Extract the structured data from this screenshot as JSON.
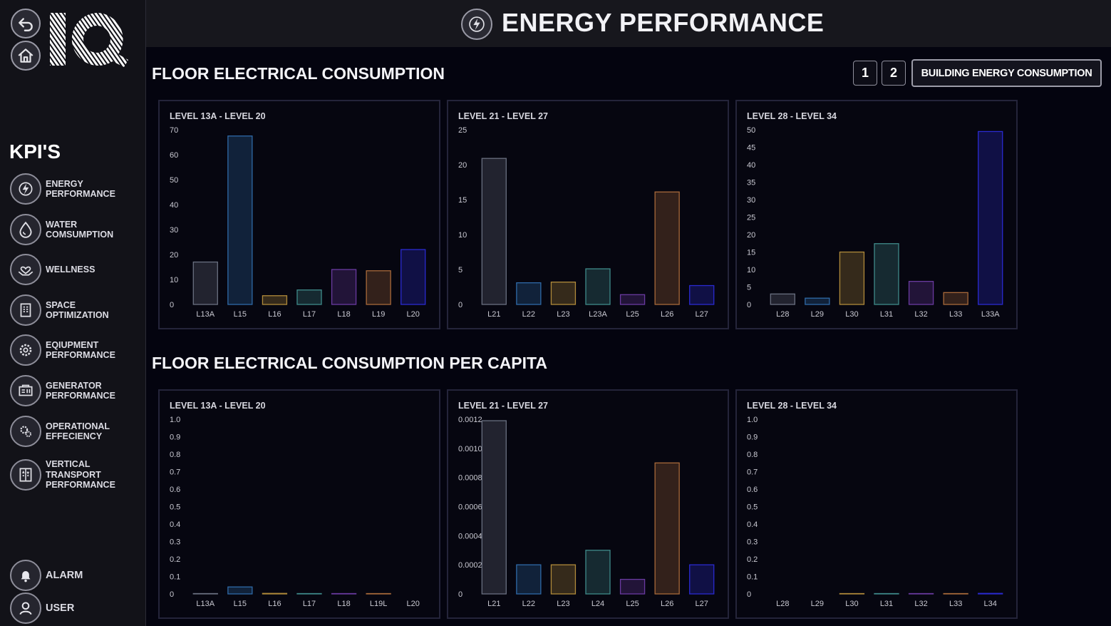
{
  "header": {
    "title": "ENERGY PERFORMANCE",
    "icon": "energy-bolt-icon"
  },
  "sidebar": {
    "kpi_title": "KPI'S",
    "items": [
      {
        "label": "ENERGY\nPERFORMANCE",
        "icon": "energy-icon"
      },
      {
        "label": "WATER\nCOMSUMPTION",
        "icon": "water-drop-icon"
      },
      {
        "label": "WELLNESS",
        "icon": "wellness-heart-icon"
      },
      {
        "label": "SPACE\nOPTIMIZATION",
        "icon": "building-icon"
      },
      {
        "label": "EQIUPMENT\nPERFORMANCE",
        "icon": "gear-icon"
      },
      {
        "label": "GENERATOR\nPERFORMANCE",
        "icon": "generator-icon"
      },
      {
        "label": "OPERATIONAL\nEFFECIENCY",
        "icon": "operations-icon"
      },
      {
        "label": "VERTICAL\nTRANSPORT\nPERFORMANCE",
        "icon": "elevator-icon"
      }
    ],
    "bottom": [
      {
        "label": "ALARM",
        "icon": "bell-icon"
      },
      {
        "label": "USER",
        "icon": "user-icon"
      }
    ]
  },
  "sections": {
    "consumption_title": "FLOOR ELECTRICAL CONSUMPTION",
    "per_capita_title": "FLOOR ELECTRICAL CONSUMPTION PER CAPITA"
  },
  "pagination": {
    "page1": "1",
    "page2": "2"
  },
  "building_button": "BUILDING ENERGY CONSUMPTION",
  "chart_data": [
    {
      "type": "bar",
      "title": "LEVEL 13A - LEVEL 20",
      "categories": [
        "L13A",
        "L15",
        "L16",
        "L17",
        "L18",
        "L19",
        "L20"
      ],
      "values": [
        17,
        67.5,
        3.5,
        5.8,
        14,
        13.5,
        22
      ],
      "ylim": [
        0,
        70
      ],
      "yticks": [
        "0",
        "10",
        "20",
        "30",
        "40",
        "50",
        "60",
        "70"
      ],
      "colors": [
        "#6a7080",
        "#2f6aa8",
        "#b08a3a",
        "#3f8a8a",
        "#6a3aa0",
        "#a8693a",
        "#2a2ad0"
      ]
    },
    {
      "type": "bar",
      "title": "LEVEL 21 - LEVEL 27",
      "categories": [
        "L21",
        "L22",
        "L23",
        "L23A",
        "L25",
        "L26",
        "L27"
      ],
      "values": [
        20.9,
        3.1,
        3.2,
        5.1,
        1.4,
        16.1,
        2.7
      ],
      "ylim": [
        0,
        25
      ],
      "yticks": [
        "0",
        "5",
        "10",
        "15",
        "20",
        "25"
      ],
      "colors": [
        "#6a7080",
        "#2f6aa8",
        "#b08a3a",
        "#3f8a8a",
        "#6a3aa0",
        "#a8693a",
        "#2a2ad0"
      ]
    },
    {
      "type": "bar",
      "title": "LEVEL 28 - LEVEL 34",
      "categories": [
        "L28",
        "L29",
        "L30",
        "L31",
        "L32",
        "L33",
        "L33A"
      ],
      "values": [
        3,
        1.8,
        15,
        17.4,
        6.6,
        3.4,
        49.5
      ],
      "ylim": [
        0,
        50
      ],
      "yticks": [
        "0",
        "5",
        "10",
        "15",
        "20",
        "25",
        "30",
        "35",
        "40",
        "45",
        "50"
      ],
      "colors": [
        "#6a7080",
        "#2f6aa8",
        "#b08a3a",
        "#3f8a8a",
        "#6a3aa0",
        "#a8693a",
        "#2a2ad0"
      ]
    },
    {
      "type": "bar",
      "title": "LEVEL 13A - LEVEL 20",
      "categories": [
        "L13A",
        "L15",
        "L16",
        "L17",
        "L18",
        "L19L",
        "L20"
      ],
      "values": [
        0.002,
        0.04,
        0.003,
        0.002,
        0.002,
        0.002,
        0
      ],
      "ylim": [
        0,
        1
      ],
      "yticks": [
        "0",
        "0.1",
        "0.2",
        "0.3",
        "0.4",
        "0.5",
        "0.6",
        "0.7",
        "0.8",
        "0.9",
        "1.0"
      ],
      "colors": [
        "#6a7080",
        "#2f6aa8",
        "#b08a3a",
        "#3f8a8a",
        "#6a3aa0",
        "#a8693a",
        "#2a2ad0"
      ]
    },
    {
      "type": "bar",
      "title": "LEVEL 21 - LEVEL 27",
      "categories": [
        "L21",
        "L22",
        "L23",
        "L24",
        "L25",
        "L26",
        "L27"
      ],
      "values": [
        0.00119,
        0.0002,
        0.0002,
        0.0003,
        0.0001,
        0.0009,
        0.0002
      ],
      "ylim": [
        0,
        0.0012
      ],
      "yticks": [
        "0",
        "0.0002",
        "0.0004",
        "0.0006",
        "0.0008",
        "0.0010",
        "0.0012"
      ],
      "colors": [
        "#6a7080",
        "#2f6aa8",
        "#b08a3a",
        "#3f8a8a",
        "#6a3aa0",
        "#a8693a",
        "#2a2ad0"
      ]
    },
    {
      "type": "bar",
      "title": "LEVEL 28 - LEVEL 34",
      "categories": [
        "L28",
        "L29",
        "L30",
        "L31",
        "L32",
        "L33",
        "L34"
      ],
      "values": [
        0,
        0,
        0.002,
        0.002,
        0.002,
        0.002,
        0.003
      ],
      "ylim": [
        0,
        1
      ],
      "yticks": [
        "0",
        "0.1",
        "0.2",
        "0.3",
        "0.4",
        "0.5",
        "0.6",
        "0.7",
        "0.8",
        "0.9",
        "1.0"
      ],
      "colors": [
        "#6a7080",
        "#2f6aa8",
        "#b08a3a",
        "#3f8a8a",
        "#6a3aa0",
        "#a8693a",
        "#2a2ad0"
      ]
    }
  ]
}
